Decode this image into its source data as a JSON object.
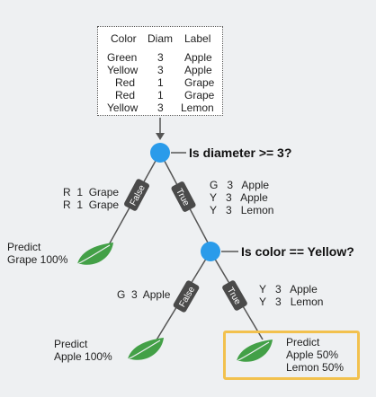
{
  "table": {
    "headers": [
      "Color",
      "Diam",
      "Label"
    ],
    "rows": [
      [
        "Green",
        "3",
        "Apple"
      ],
      [
        "Yellow",
        "3",
        "Apple"
      ],
      [
        "Red",
        "1",
        "Grape"
      ],
      [
        "Red",
        "1",
        "Grape"
      ],
      [
        "Yellow",
        "3",
        "Lemon"
      ]
    ]
  },
  "root": {
    "question": "Is diameter >= 3?",
    "false_label": "False",
    "true_label": "True",
    "false_rows": [
      [
        "R",
        "1",
        "Grape"
      ],
      [
        "R",
        "1",
        "Grape"
      ]
    ],
    "true_rows": [
      [
        "G",
        "3",
        "Apple"
      ],
      [
        "Y",
        "3",
        "Apple"
      ],
      [
        "Y",
        "3",
        "Lemon"
      ]
    ]
  },
  "leaf_grape": {
    "line1": "Predict",
    "line2": "Grape 100%"
  },
  "node2": {
    "question": "Is color == Yellow?",
    "false_label": "False",
    "true_label": "True",
    "false_rows": [
      [
        "G",
        "3",
        "Apple"
      ]
    ],
    "true_rows": [
      [
        "Y",
        "3",
        "Apple"
      ],
      [
        "Y",
        "3",
        "Lemon"
      ]
    ]
  },
  "leaf_apple": {
    "line1": "Predict",
    "line2": "Apple 100%"
  },
  "leaf_mixed": {
    "line1": "Predict",
    "line2": "Apple 50%",
    "line3": "Lemon 50%"
  },
  "colors": {
    "node": "#2a9bea",
    "leaf": "#43a047",
    "edge_label_bg": "#4a4a4a",
    "highlight": "#f2c14e",
    "background": "#eef0f2"
  }
}
